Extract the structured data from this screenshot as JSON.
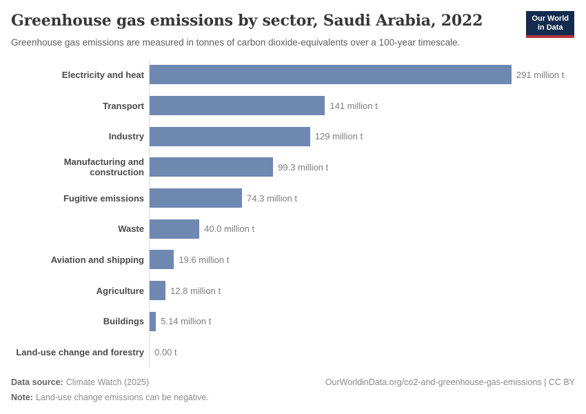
{
  "header": {
    "title": "Greenhouse gas emissions by sector, Saudi Arabia, 2022",
    "subtitle": "Greenhouse gas emissions are measured in tonnes of carbon dioxide-equivalents over a 100-year timescale."
  },
  "logo": {
    "line1": "Our World",
    "line2": "in Data"
  },
  "chart_data": {
    "type": "bar",
    "orientation": "horizontal",
    "title": "Greenhouse gas emissions by sector, Saudi Arabia, 2022",
    "categories": [
      "Electricity and heat",
      "Transport",
      "Industry",
      "Manufacturing and construction",
      "Fugitive emissions",
      "Waste",
      "Aviation and shipping",
      "Agriculture",
      "Buildings",
      "Land-use change and forestry"
    ],
    "values": [
      291,
      141,
      129,
      99.3,
      74.3,
      40.0,
      19.6,
      12.8,
      5.14,
      0
    ],
    "value_labels": [
      "291 million t",
      "141 million t",
      "129 million t",
      "99.3 million t",
      "74.3 million t",
      "40.0 million t",
      "19.6 million t",
      "12.8 million t",
      "5.14 million t",
      "0.00 t"
    ],
    "xlim": [
      0,
      291
    ],
    "grid": false,
    "legend": "none",
    "bar_color": "#6e88b2"
  },
  "footer": {
    "data_source_label": "Data source:",
    "data_source": "Climate Watch (2025)",
    "note_label": "Note:",
    "note": "Land-use change emissions can be negative.",
    "link": "OurWorldinData.org/co2-and-greenhouse-gas-emissions | CC BY"
  },
  "colors": {
    "bar": "#6e88b2",
    "logo_bg": "#132c4e",
    "logo_stripe": "#b2333a",
    "axis_line": "#dddddd"
  }
}
